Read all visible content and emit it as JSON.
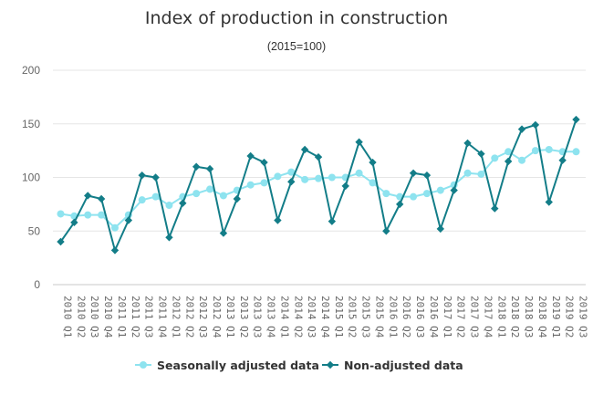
{
  "chart_data": {
    "type": "line",
    "title": "Index of production in construction",
    "subtitle": "(2015=100)",
    "xlabel": "",
    "ylabel": "",
    "ylim": [
      0,
      200
    ],
    "yticks": [
      0,
      50,
      100,
      150,
      200
    ],
    "grid": true,
    "legend_position": "bottom",
    "categories": [
      "2010 Q1",
      "2010 Q2",
      "2010 Q3",
      "2010 Q4",
      "2011 Q1",
      "2011 Q2",
      "2011 Q3",
      "2011 Q4",
      "2012 Q1",
      "2012 Q2",
      "2012 Q3",
      "2012 Q4",
      "2013 Q1",
      "2013 Q2",
      "2013 Q3",
      "2013 Q4",
      "2014 Q1",
      "2014 Q2",
      "2014 Q3",
      "2014 Q4",
      "2015 Q1",
      "2015 Q2",
      "2015 Q3",
      "2015 Q4",
      "2016 Q1",
      "2016 Q2",
      "2016 Q3",
      "2016 Q4",
      "2017 Q1",
      "2017 Q2",
      "2017 Q3",
      "2017 Q4",
      "2018 Q1",
      "2018 Q2",
      "2018 Q3",
      "2018 Q4",
      "2019 Q1",
      "2019 Q2",
      "2019 Q3"
    ],
    "series": [
      {
        "name": "Seasonally adjusted data",
        "color": "#8ee3ef",
        "marker": "circle",
        "values": [
          66,
          64,
          65,
          65,
          53,
          65,
          79,
          82,
          74,
          82,
          85,
          89,
          83,
          88,
          93,
          95,
          101,
          105,
          98,
          99,
          100,
          100,
          104,
          95,
          85,
          82,
          82,
          85,
          88,
          93,
          104,
          103,
          118,
          124,
          116,
          125,
          126,
          124,
          124
        ]
      },
      {
        "name": "Non-adjusted data",
        "color": "#137d88",
        "marker": "diamond",
        "values": [
          40,
          58,
          83,
          80,
          32,
          60,
          102,
          100,
          44,
          76,
          110,
          108,
          48,
          80,
          120,
          114,
          60,
          96,
          126,
          119,
          59,
          92,
          133,
          114,
          50,
          75,
          104,
          102,
          52,
          88,
          132,
          122,
          71,
          115,
          145,
          149,
          77,
          116,
          154
        ]
      }
    ]
  }
}
